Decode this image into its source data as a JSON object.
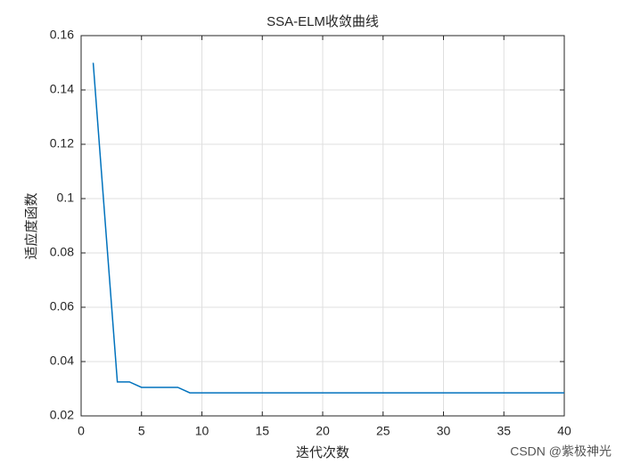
{
  "chart_data": {
    "type": "line",
    "title": "SSA-ELM收敛曲线",
    "x_label": "迭代次数",
    "y_label": "适应度函数",
    "x": [
      1,
      2,
      3,
      4,
      5,
      6,
      7,
      8,
      9,
      10,
      11,
      12,
      13,
      14,
      15,
      16,
      17,
      18,
      19,
      20,
      21,
      22,
      23,
      24,
      25,
      26,
      27,
      28,
      29,
      30,
      31,
      32,
      33,
      34,
      35,
      36,
      37,
      38,
      39,
      40
    ],
    "series": [
      {
        "color": "#0072bd",
        "values": [
          0.15,
          0.091,
          0.0325,
          0.0325,
          0.0305,
          0.0305,
          0.0305,
          0.0305,
          0.0285,
          0.0285,
          0.0285,
          0.0285,
          0.0285,
          0.0285,
          0.0285,
          0.0285,
          0.0285,
          0.0285,
          0.0285,
          0.0285,
          0.0285,
          0.0285,
          0.0285,
          0.0285,
          0.0285,
          0.0285,
          0.0285,
          0.0285,
          0.0285,
          0.0285,
          0.0285,
          0.0285,
          0.0285,
          0.0285,
          0.0285,
          0.0285,
          0.0285,
          0.0285,
          0.0285,
          0.0285
        ]
      }
    ],
    "xlim": [
      0,
      40
    ],
    "xticks": [
      0,
      5,
      10,
      15,
      20,
      25,
      30,
      35,
      40
    ],
    "ylim": [
      0.02,
      0.16
    ],
    "yticks": [
      0.02,
      0.04,
      0.06,
      0.08,
      0.1,
      0.12,
      0.14,
      0.16
    ],
    "grid": true,
    "watermark": "CSDN @紫极神光"
  }
}
